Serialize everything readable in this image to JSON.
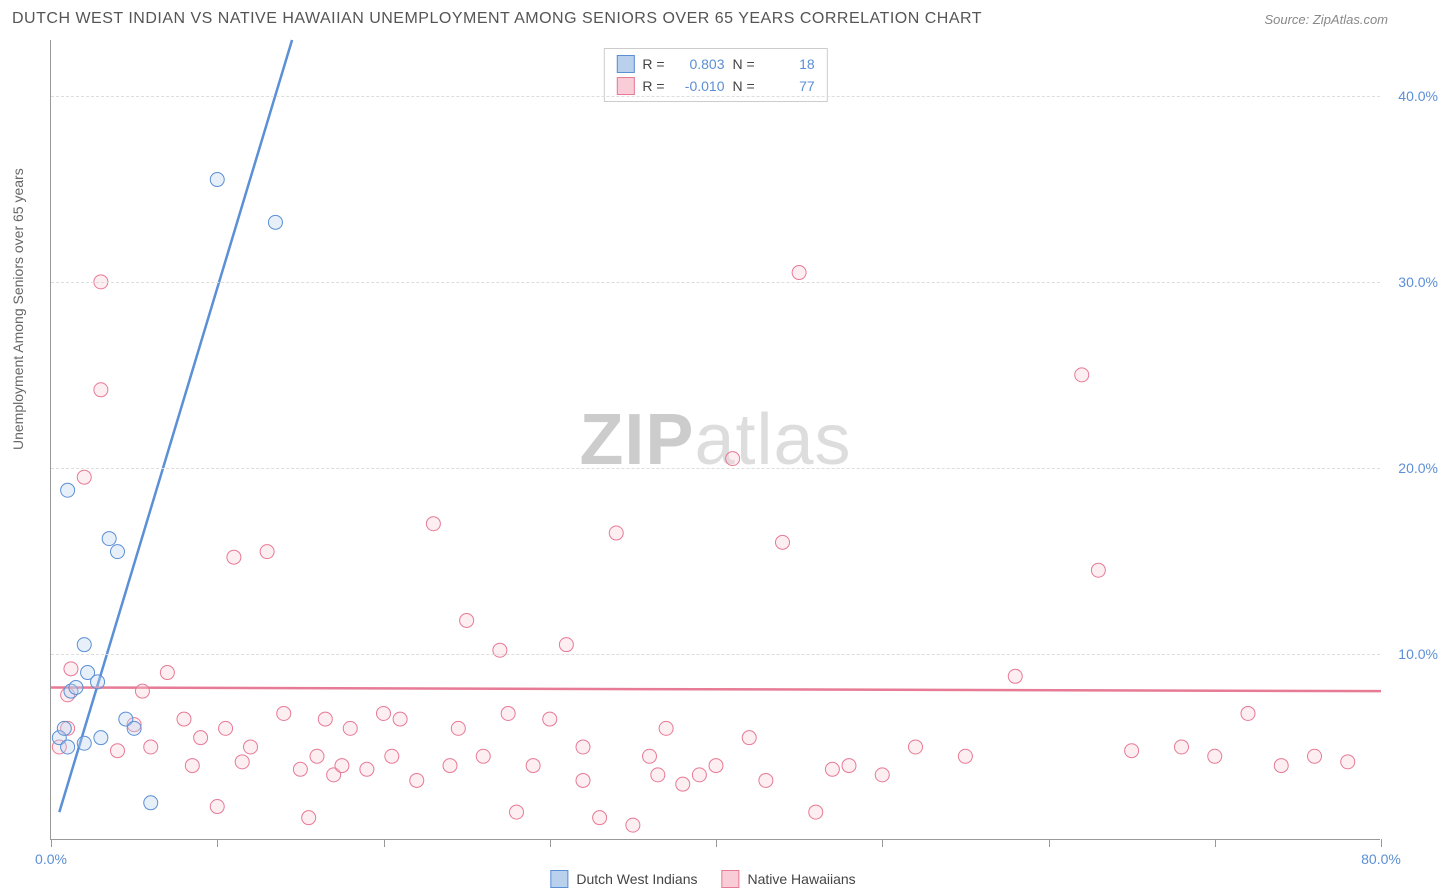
{
  "title": "DUTCH WEST INDIAN VS NATIVE HAWAIIAN UNEMPLOYMENT AMONG SENIORS OVER 65 YEARS CORRELATION CHART",
  "source": "Source: ZipAtlas.com",
  "ylabel": "Unemployment Among Seniors over 65 years",
  "watermark_a": "ZIP",
  "watermark_b": "atlas",
  "chart": {
    "type": "scatter",
    "xlim": [
      0,
      80
    ],
    "ylim": [
      0,
      43
    ],
    "x_ticks": [
      0,
      10,
      20,
      30,
      40,
      50,
      60,
      70,
      80
    ],
    "x_tick_labels": {
      "0": "0.0%",
      "80": "80.0%"
    },
    "y_gridlines": [
      10,
      20,
      30,
      40
    ],
    "y_tick_labels": {
      "10": "10.0%",
      "20": "20.0%",
      "30": "30.0%",
      "40": "40.0%"
    },
    "background_color": "#ffffff",
    "grid_color": "#dddddd",
    "axis_color": "#999999",
    "tick_label_color": "#5b8fd6",
    "marker_radius": 7,
    "marker_fill_opacity": 0.35,
    "series": [
      {
        "name": "Dutch West Indians",
        "color": "#5b8fd6",
        "fill": "#b9d1ed",
        "R": "0.803",
        "N": "18",
        "trend": {
          "x1": 0.5,
          "y1": 1.5,
          "x2": 14.5,
          "y2": 43,
          "width": 2.5
        },
        "points": [
          [
            0.5,
            5.5
          ],
          [
            0.8,
            6.0
          ],
          [
            1.0,
            5.0
          ],
          [
            1.2,
            8.0
          ],
          [
            1.5,
            8.2
          ],
          [
            2.0,
            5.2
          ],
          [
            2.2,
            9.0
          ],
          [
            2.0,
            10.5
          ],
          [
            2.8,
            8.5
          ],
          [
            3.0,
            5.5
          ],
          [
            4.5,
            6.5
          ],
          [
            6.0,
            2.0
          ],
          [
            3.5,
            16.2
          ],
          [
            4.0,
            15.5
          ],
          [
            1.0,
            18.8
          ],
          [
            10.0,
            35.5
          ],
          [
            13.5,
            33.2
          ],
          [
            5.0,
            6.0
          ]
        ]
      },
      {
        "name": "Native Hawaiians",
        "color": "#e77a95",
        "fill": "#f8cdd7",
        "R": "-0.010",
        "N": "77",
        "trend": {
          "x1": 0,
          "y1": 8.2,
          "x2": 80,
          "y2": 8.0,
          "width": 2.5
        },
        "points": [
          [
            0.5,
            5.0
          ],
          [
            1.0,
            6.0
          ],
          [
            1.0,
            7.8
          ],
          [
            1.2,
            9.2
          ],
          [
            2.0,
            19.5
          ],
          [
            3.0,
            30.0
          ],
          [
            3.0,
            24.2
          ],
          [
            4.0,
            4.8
          ],
          [
            5.0,
            6.2
          ],
          [
            5.5,
            8.0
          ],
          [
            6.0,
            5.0
          ],
          [
            7.0,
            9.0
          ],
          [
            8.0,
            6.5
          ],
          [
            8.5,
            4.0
          ],
          [
            9.0,
            5.5
          ],
          [
            10.0,
            1.8
          ],
          [
            10.5,
            6.0
          ],
          [
            11.0,
            15.2
          ],
          [
            11.5,
            4.2
          ],
          [
            12.0,
            5.0
          ],
          [
            13.0,
            15.5
          ],
          [
            14.0,
            6.8
          ],
          [
            15.0,
            3.8
          ],
          [
            15.5,
            1.2
          ],
          [
            16.0,
            4.5
          ],
          [
            16.5,
            6.5
          ],
          [
            17.0,
            3.5
          ],
          [
            17.5,
            4.0
          ],
          [
            18.0,
            6.0
          ],
          [
            19.0,
            3.8
          ],
          [
            20.0,
            6.8
          ],
          [
            20.5,
            4.5
          ],
          [
            21.0,
            6.5
          ],
          [
            22.0,
            3.2
          ],
          [
            23.0,
            17.0
          ],
          [
            24.0,
            4.0
          ],
          [
            24.5,
            6.0
          ],
          [
            25.0,
            11.8
          ],
          [
            26.0,
            4.5
          ],
          [
            27.0,
            10.2
          ],
          [
            27.5,
            6.8
          ],
          [
            28.0,
            1.5
          ],
          [
            29.0,
            4.0
          ],
          [
            30.0,
            6.5
          ],
          [
            31.0,
            10.5
          ],
          [
            32.0,
            5.0
          ],
          [
            33.0,
            1.2
          ],
          [
            34.0,
            16.5
          ],
          [
            35.0,
            0.8
          ],
          [
            36.0,
            4.5
          ],
          [
            36.5,
            3.5
          ],
          [
            37.0,
            6.0
          ],
          [
            38.0,
            3.0
          ],
          [
            39.0,
            3.5
          ],
          [
            40.0,
            4.0
          ],
          [
            41.0,
            20.5
          ],
          [
            42.0,
            5.5
          ],
          [
            43.0,
            3.2
          ],
          [
            44.0,
            16.0
          ],
          [
            45.0,
            30.5
          ],
          [
            46.0,
            1.5
          ],
          [
            47.0,
            3.8
          ],
          [
            48.0,
            4.0
          ],
          [
            50.0,
            3.5
          ],
          [
            52.0,
            5.0
          ],
          [
            55.0,
            4.5
          ],
          [
            58.0,
            8.8
          ],
          [
            62.0,
            25.0
          ],
          [
            63.0,
            14.5
          ],
          [
            65.0,
            4.8
          ],
          [
            68.0,
            5.0
          ],
          [
            70.0,
            4.5
          ],
          [
            72.0,
            6.8
          ],
          [
            74.0,
            4.0
          ],
          [
            76.0,
            4.5
          ],
          [
            78.0,
            4.2
          ],
          [
            32.0,
            3.2
          ]
        ]
      }
    ]
  },
  "legend": {
    "series1": "Dutch West Indians",
    "series2": "Native Hawaiians"
  },
  "stats_labels": {
    "R": "R =",
    "N": "N ="
  }
}
